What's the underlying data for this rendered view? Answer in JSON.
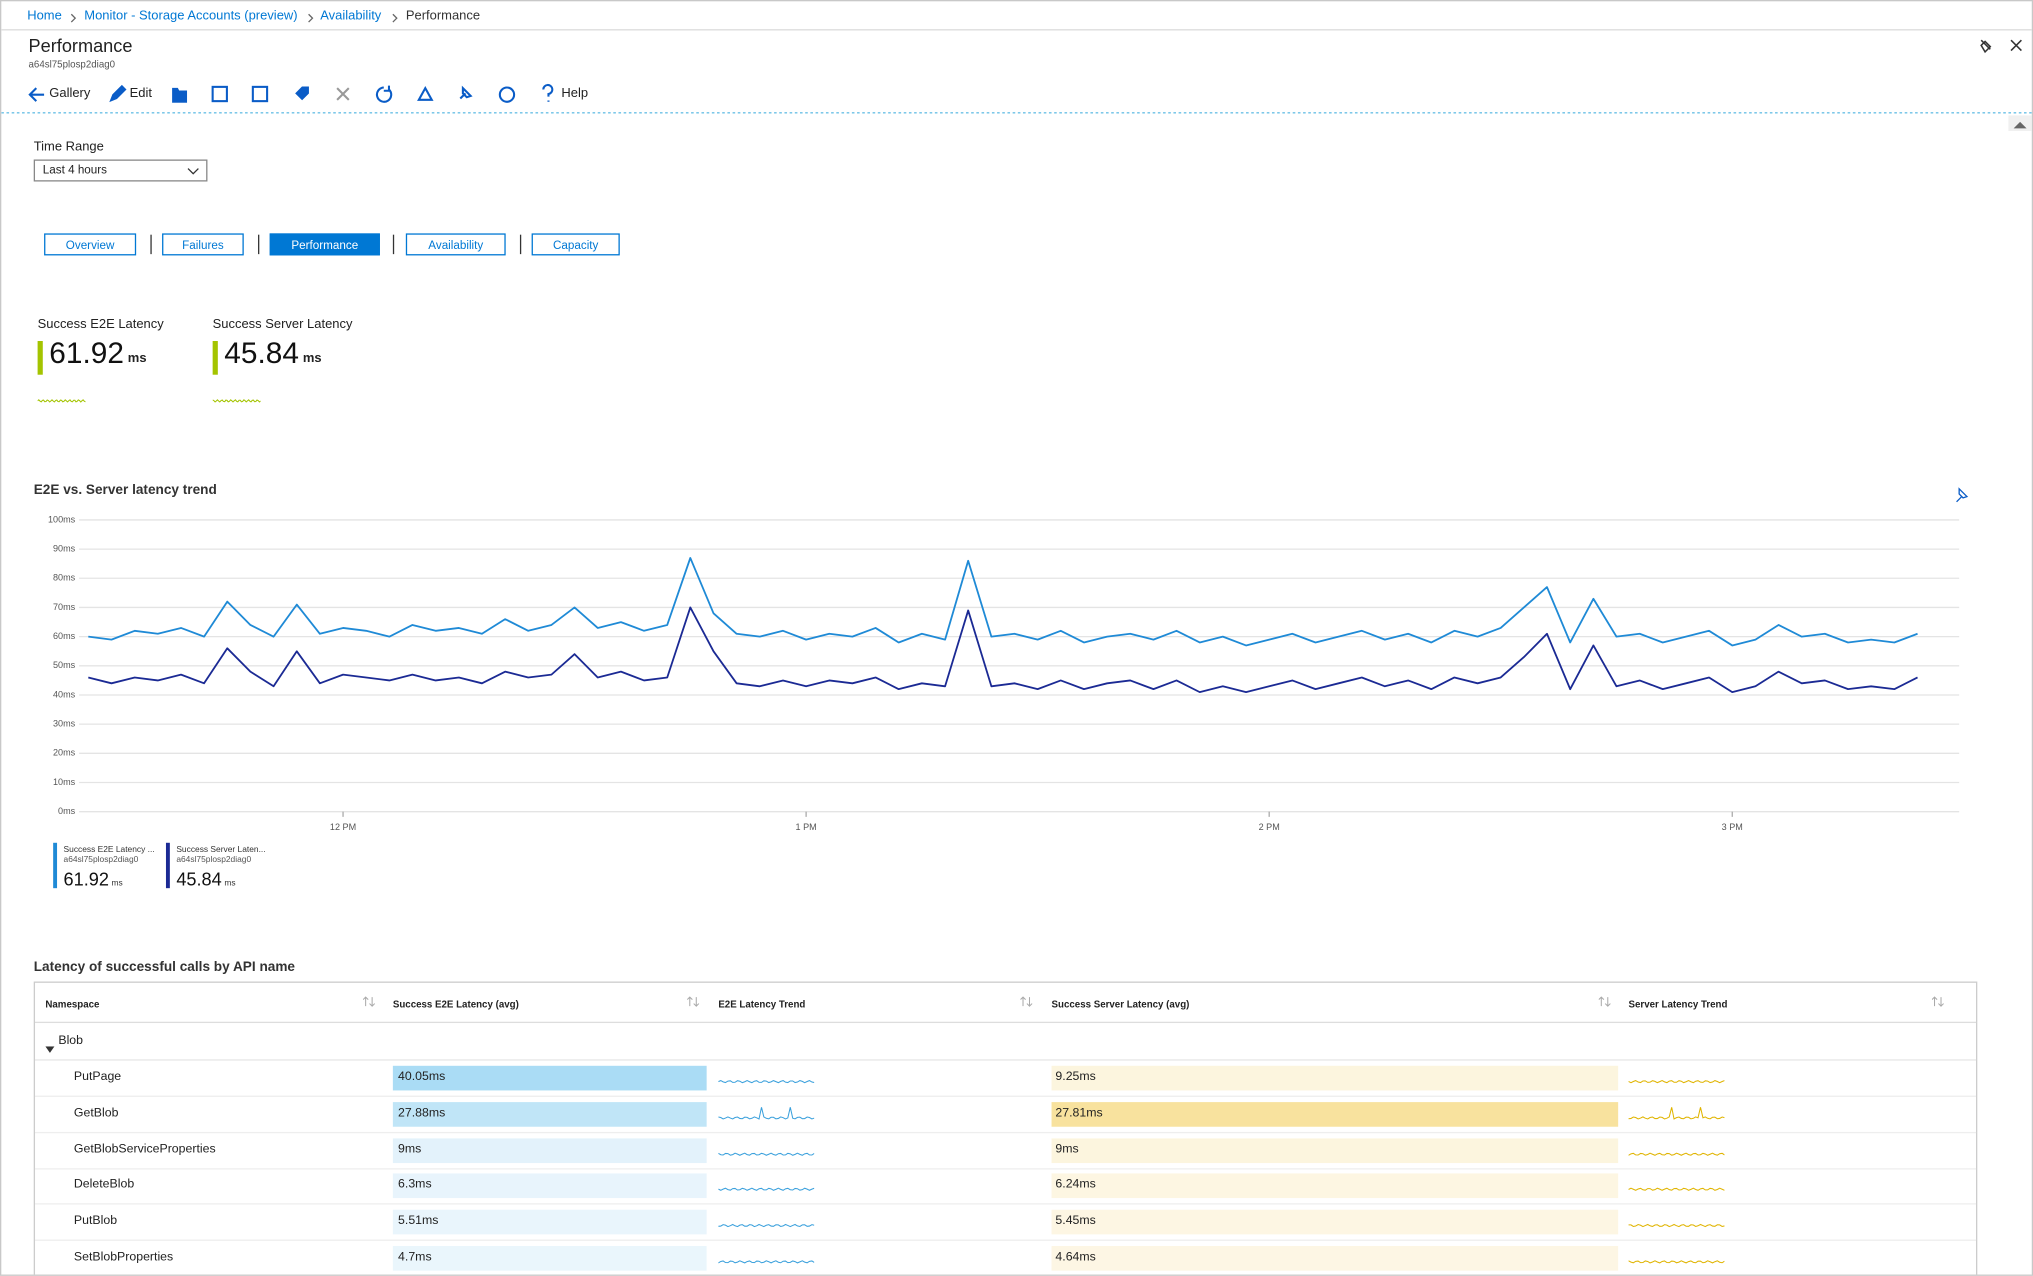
{
  "breadcrumb": [
    "Home",
    "Monitor - Storage Accounts (preview)",
    "Availability",
    "Performance"
  ],
  "header": {
    "title": "Performance",
    "subtitle": "a64sl75plosp2diag0"
  },
  "toolbar": {
    "gallery": "Gallery",
    "edit": "Edit",
    "help": "Help"
  },
  "time_range": {
    "label": "Time Range",
    "value": "Last 4 hours"
  },
  "tabs": [
    "Overview",
    "Failures",
    "Performance",
    "Availability",
    "Capacity"
  ],
  "tiles": [
    {
      "label": "Success E2E Latency",
      "value": 61.92,
      "unit": "ms"
    },
    {
      "label": "Success Server Latency",
      "value": 45.84,
      "unit": "ms"
    }
  ],
  "chart_data": {
    "type": "line",
    "title": "E2E vs. Server latency trend",
    "x": [
      11.45,
      11.5,
      11.55,
      11.6,
      11.65,
      11.7,
      11.75,
      11.8,
      11.85,
      11.9,
      11.95,
      12,
      12.05,
      12.1,
      12.15,
      12.2,
      12.25,
      12.3,
      12.35,
      12.4,
      12.45,
      12.5,
      12.55,
      12.6,
      12.65,
      12.7,
      12.75,
      12.8,
      12.85,
      12.9,
      12.95,
      13,
      13.05,
      13.1,
      13.15,
      13.2,
      13.25,
      13.3,
      13.35,
      13.4,
      13.45,
      13.5,
      13.55,
      13.6,
      13.65,
      13.7,
      13.75,
      13.8,
      13.85,
      13.9,
      13.95,
      14,
      14.05,
      14.1,
      14.15,
      14.2,
      14.25,
      14.3,
      14.35,
      14.4,
      14.45,
      14.5,
      14.55,
      14.6,
      14.65,
      14.7,
      14.75,
      14.8,
      14.85,
      14.9,
      14.95,
      15,
      15.05,
      15.1,
      15.15,
      15.2,
      15.25,
      15.3,
      15.35,
      15.4
    ],
    "series": [
      {
        "name": "Success E2E Latency ...",
        "resource": "a64sl75plosp2diag0",
        "summary": 61.92,
        "unit": "ms",
        "color": "#1f8ad6",
        "values": [
          60,
          59,
          62,
          61,
          63,
          60,
          72,
          64,
          60,
          71,
          61,
          63,
          62,
          60,
          64,
          62,
          63,
          61,
          66,
          62,
          64,
          70,
          63,
          65,
          62,
          64,
          87,
          68,
          61,
          60,
          62,
          59,
          61,
          60,
          63,
          58,
          61,
          59,
          86,
          60,
          61,
          59,
          62,
          58,
          60,
          61,
          59,
          62,
          58,
          60,
          57,
          59,
          61,
          58,
          60,
          62,
          59,
          61,
          58,
          62,
          60,
          63,
          70,
          77,
          58,
          73,
          60,
          61,
          58,
          60,
          62,
          57,
          59,
          64,
          60,
          61,
          58,
          59,
          58,
          61
        ]
      },
      {
        "name": "Success Server Laten...",
        "resource": "a64sl75plosp2diag0",
        "summary": 45.84,
        "unit": "ms",
        "color": "#1b2a94",
        "values": [
          46,
          44,
          46,
          45,
          47,
          44,
          56,
          48,
          43,
          55,
          44,
          47,
          46,
          45,
          47,
          45,
          46,
          44,
          48,
          46,
          47,
          54,
          46,
          48,
          45,
          46,
          70,
          55,
          44,
          43,
          45,
          43,
          45,
          44,
          46,
          42,
          44,
          43,
          69,
          43,
          44,
          42,
          45,
          42,
          44,
          45,
          42,
          45,
          41,
          43,
          41,
          43,
          45,
          42,
          44,
          46,
          43,
          45,
          42,
          46,
          44,
          46,
          53,
          61,
          42,
          57,
          43,
          45,
          42,
          44,
          46,
          41,
          43,
          48,
          44,
          45,
          42,
          43,
          42,
          46
        ]
      }
    ],
    "xlim": [
      11.43,
      15.49
    ],
    "xticks": [
      {
        "value": 12,
        "label": "12 PM"
      },
      {
        "value": 13,
        "label": "1 PM"
      },
      {
        "value": 14,
        "label": "2 PM"
      },
      {
        "value": 15,
        "label": "3 PM"
      }
    ],
    "ylim": [
      0,
      100
    ],
    "yticks": [
      {
        "value": 0,
        "label": "0ms"
      },
      {
        "value": 10,
        "label": "10ms"
      },
      {
        "value": 20,
        "label": "20ms"
      },
      {
        "value": 30,
        "label": "30ms"
      },
      {
        "value": 40,
        "label": "40ms"
      },
      {
        "value": 50,
        "label": "50ms"
      },
      {
        "value": 60,
        "label": "60ms"
      },
      {
        "value": 70,
        "label": "70ms"
      },
      {
        "value": 80,
        "label": "80ms"
      },
      {
        "value": 90,
        "label": "90ms"
      },
      {
        "value": 100,
        "label": "100ms"
      }
    ],
    "grid": true
  },
  "table": {
    "title": "Latency of successful calls by API name",
    "columns": [
      "Namespace",
      "Success E2E Latency (avg)",
      "E2E Latency Trend",
      "Success Server Latency (avg)",
      "Server Latency Trend"
    ],
    "group": "Blob",
    "rows": [
      [
        "PutPage",
        "40.05ms",
        "9.25ms"
      ],
      [
        "GetBlob",
        "27.88ms",
        "27.81ms"
      ],
      [
        "GetBlobServiceProperties",
        "9ms",
        "9ms"
      ],
      [
        "DeleteBlob",
        "6.3ms",
        "6.24ms"
      ],
      [
        "PutBlob",
        "5.51ms",
        "5.45ms"
      ],
      [
        "SetBlobProperties",
        "4.7ms",
        "4.64ms"
      ]
    ]
  }
}
